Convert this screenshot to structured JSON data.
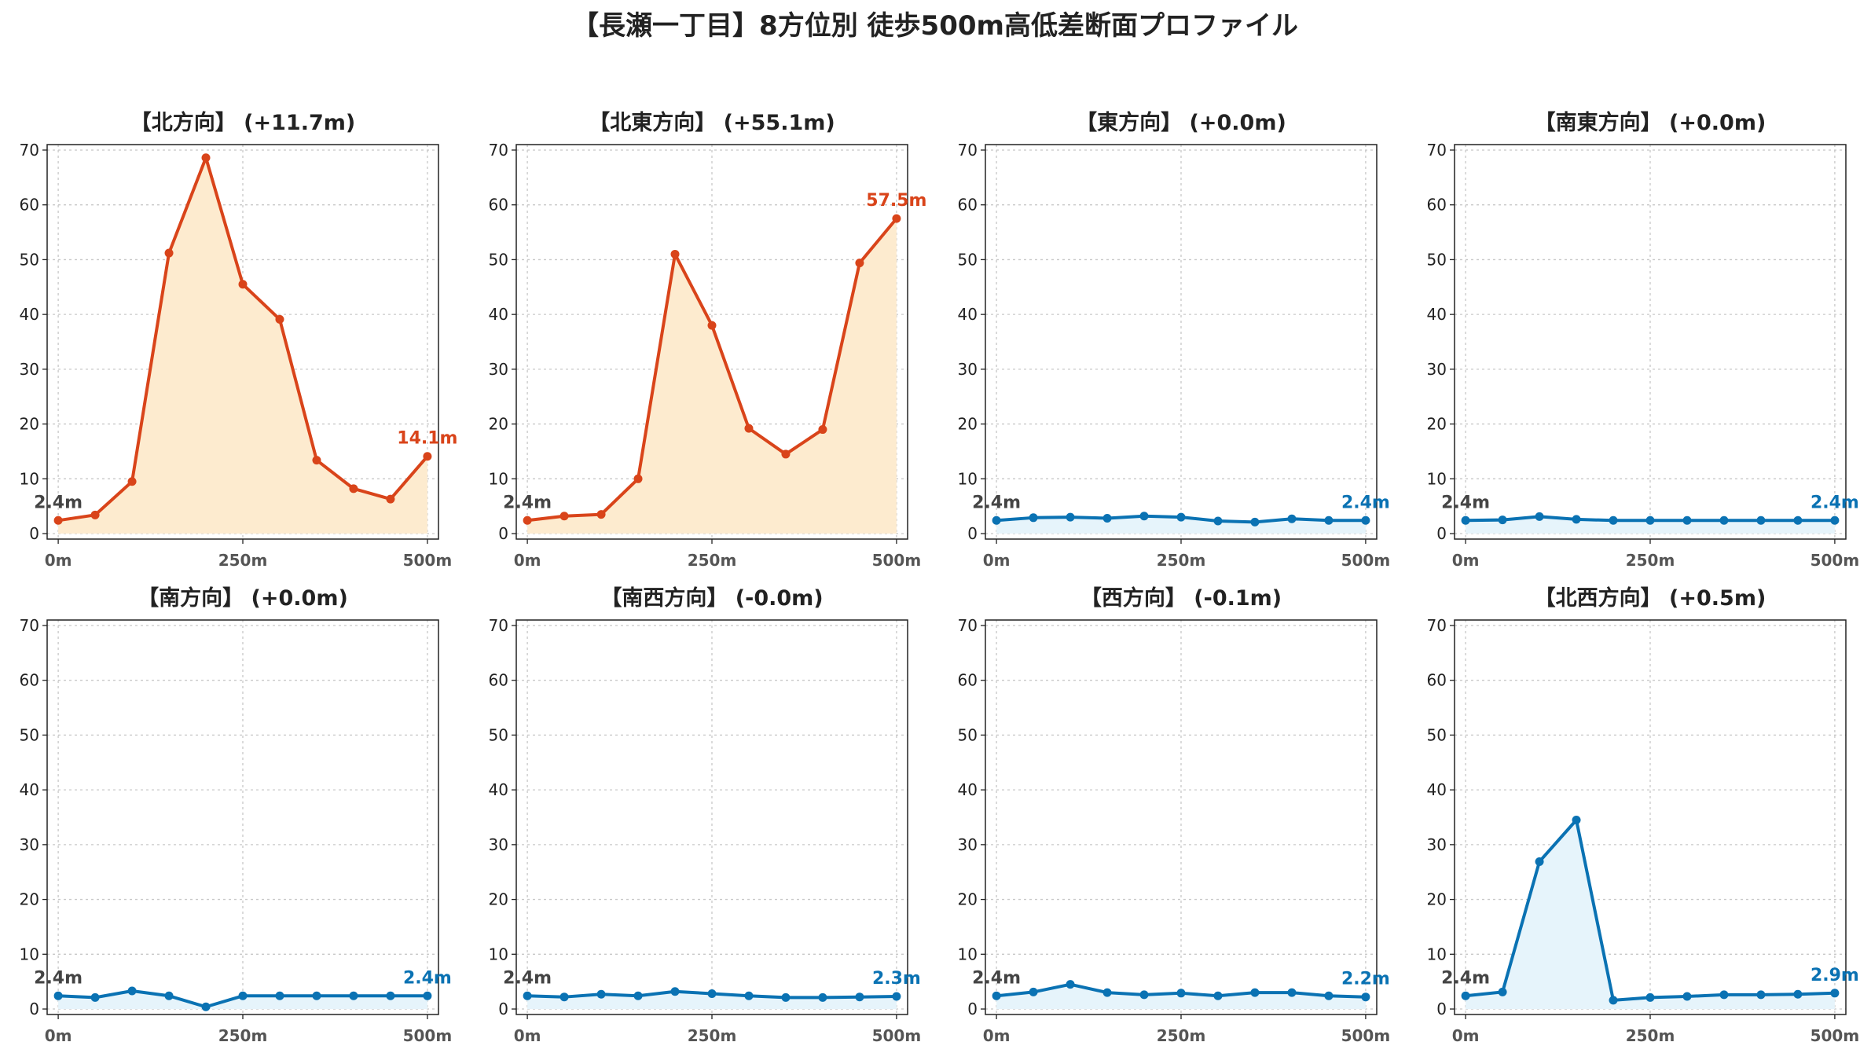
{
  "title": "【長瀬一丁目】8方位別 徒歩500m高低差断面プロファイル",
  "colors": {
    "up_line": "#d9441a",
    "up_fill": "#fdebcf",
    "flat_line": "#0a72b3",
    "flat_fill": "#e6f4fb"
  },
  "chart_data": [
    {
      "type": "area",
      "title": "【北方向】 (+11.7m)",
      "x": [
        0,
        50,
        100,
        150,
        200,
        250,
        300,
        350,
        400,
        450,
        500
      ],
      "series": [
        {
          "values": [
            2.4,
            3.4,
            9.5,
            51.2,
            68.6,
            45.5,
            39.1,
            13.4,
            8.2,
            6.3,
            14.1
          ]
        }
      ],
      "xticks": [
        "0m",
        "250m",
        "500m"
      ],
      "yticks": [
        "0",
        "10",
        "20",
        "30",
        "40",
        "50",
        "60",
        "70"
      ],
      "ylim": [
        -1,
        71
      ],
      "xlim": [
        -15,
        515
      ],
      "start_label": "2.4m",
      "end_label": "14.1m",
      "color": "up",
      "grid": true
    },
    {
      "type": "area",
      "title": "【北東方向】 (+55.1m)",
      "x": [
        0,
        50,
        100,
        150,
        200,
        250,
        300,
        350,
        400,
        450,
        500
      ],
      "series": [
        {
          "values": [
            2.4,
            3.2,
            3.5,
            10.0,
            51.0,
            38.0,
            19.2,
            14.5,
            19.0,
            49.4,
            57.5
          ]
        }
      ],
      "xticks": [
        "0m",
        "250m",
        "500m"
      ],
      "yticks": [
        "0",
        "10",
        "20",
        "30",
        "40",
        "50",
        "60",
        "70"
      ],
      "ylim": [
        -1,
        71
      ],
      "xlim": [
        -15,
        515
      ],
      "start_label": "2.4m",
      "end_label": "57.5m",
      "color": "up",
      "grid": true
    },
    {
      "type": "area",
      "title": "【東方向】 (+0.0m)",
      "x": [
        0,
        50,
        100,
        150,
        200,
        250,
        300,
        350,
        400,
        450,
        500
      ],
      "series": [
        {
          "values": [
            2.4,
            2.9,
            3.0,
            2.8,
            3.2,
            3.0,
            2.3,
            2.1,
            2.7,
            2.4,
            2.4
          ]
        }
      ],
      "xticks": [
        "0m",
        "250m",
        "500m"
      ],
      "yticks": [
        "0",
        "10",
        "20",
        "30",
        "40",
        "50",
        "60",
        "70"
      ],
      "ylim": [
        -1,
        71
      ],
      "xlim": [
        -15,
        515
      ],
      "start_label": "2.4m",
      "end_label": "2.4m",
      "color": "flat",
      "grid": true
    },
    {
      "type": "area",
      "title": "【南東方向】 (+0.0m)",
      "x": [
        0,
        50,
        100,
        150,
        200,
        250,
        300,
        350,
        400,
        450,
        500
      ],
      "series": [
        {
          "values": [
            2.4,
            2.5,
            3.1,
            2.6,
            2.4,
            2.4,
            2.4,
            2.4,
            2.4,
            2.4,
            2.4
          ]
        }
      ],
      "xticks": [
        "0m",
        "250m",
        "500m"
      ],
      "yticks": [
        "0",
        "10",
        "20",
        "30",
        "40",
        "50",
        "60",
        "70"
      ],
      "ylim": [
        -1,
        71
      ],
      "xlim": [
        -15,
        515
      ],
      "start_label": "2.4m",
      "end_label": "2.4m",
      "color": "flat",
      "grid": true
    },
    {
      "type": "area",
      "title": "【南方向】 (+0.0m)",
      "x": [
        0,
        50,
        100,
        150,
        200,
        250,
        300,
        350,
        400,
        450,
        500
      ],
      "series": [
        {
          "values": [
            2.4,
            2.1,
            3.3,
            2.4,
            0.4,
            2.4,
            2.4,
            2.4,
            2.4,
            2.4,
            2.4
          ]
        }
      ],
      "xticks": [
        "0m",
        "250m",
        "500m"
      ],
      "yticks": [
        "0",
        "10",
        "20",
        "30",
        "40",
        "50",
        "60",
        "70"
      ],
      "ylim": [
        -1,
        71
      ],
      "xlim": [
        -15,
        515
      ],
      "start_label": "2.4m",
      "end_label": "2.4m",
      "color": "flat",
      "grid": true
    },
    {
      "type": "area",
      "title": "【南西方向】 (-0.0m)",
      "x": [
        0,
        50,
        100,
        150,
        200,
        250,
        300,
        350,
        400,
        450,
        500
      ],
      "series": [
        {
          "values": [
            2.4,
            2.2,
            2.7,
            2.4,
            3.2,
            2.8,
            2.4,
            2.1,
            2.1,
            2.2,
            2.3
          ]
        }
      ],
      "xticks": [
        "0m",
        "250m",
        "500m"
      ],
      "yticks": [
        "0",
        "10",
        "20",
        "30",
        "40",
        "50",
        "60",
        "70"
      ],
      "ylim": [
        -1,
        71
      ],
      "xlim": [
        -15,
        515
      ],
      "start_label": "2.4m",
      "end_label": "2.3m",
      "color": "flat",
      "grid": true
    },
    {
      "type": "area",
      "title": "【西方向】 (-0.1m)",
      "x": [
        0,
        50,
        100,
        150,
        200,
        250,
        300,
        350,
        400,
        450,
        500
      ],
      "series": [
        {
          "values": [
            2.4,
            3.1,
            4.5,
            3.0,
            2.6,
            2.9,
            2.4,
            3.0,
            3.0,
            2.4,
            2.2
          ]
        }
      ],
      "xticks": [
        "0m",
        "250m",
        "500m"
      ],
      "yticks": [
        "0",
        "10",
        "20",
        "30",
        "40",
        "50",
        "60",
        "70"
      ],
      "ylim": [
        -1,
        71
      ],
      "xlim": [
        -15,
        515
      ],
      "start_label": "2.4m",
      "end_label": "2.2m",
      "color": "flat",
      "grid": true
    },
    {
      "type": "area",
      "title": "【北西方向】 (+0.5m)",
      "x": [
        0,
        50,
        100,
        150,
        200,
        250,
        300,
        350,
        400,
        450,
        500
      ],
      "series": [
        {
          "values": [
            2.4,
            3.1,
            26.9,
            34.5,
            1.6,
            2.1,
            2.3,
            2.6,
            2.6,
            2.7,
            2.9
          ]
        }
      ],
      "xticks": [
        "0m",
        "250m",
        "500m"
      ],
      "yticks": [
        "0",
        "10",
        "20",
        "30",
        "40",
        "50",
        "60",
        "70"
      ],
      "ylim": [
        -1,
        71
      ],
      "xlim": [
        -15,
        515
      ],
      "start_label": "2.4m",
      "end_label": "2.9m",
      "color": "flat",
      "grid": true
    }
  ]
}
